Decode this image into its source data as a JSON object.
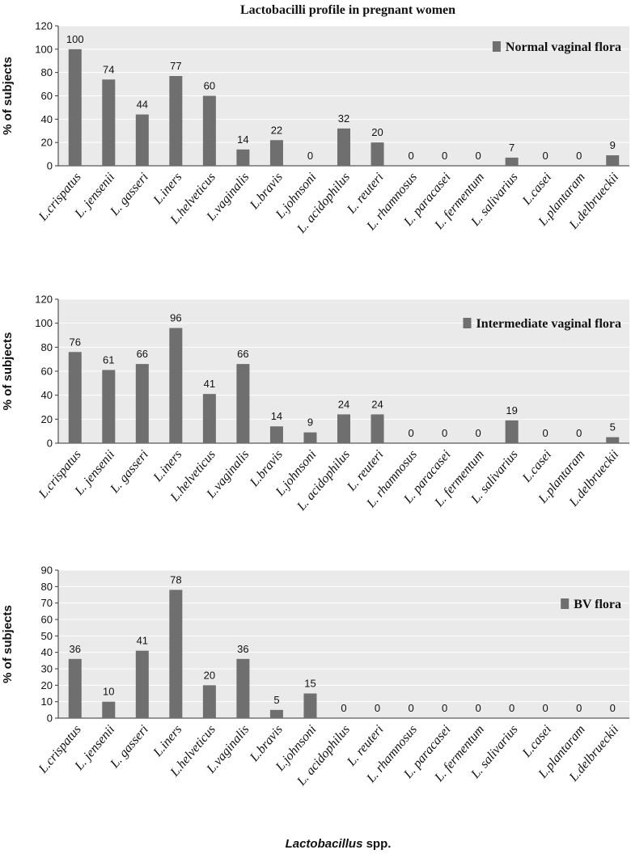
{
  "figure_title": "Lactobacilli profile in pregnant women",
  "x_axis_label": {
    "italic_part": "Lactobacillus",
    "regular_part": " spp."
  },
  "colors": {
    "bar": "#6f6f6f",
    "plot_background": "#eaeaea",
    "grid": "#ffffff",
    "axis": "#333333"
  },
  "chart_data": [
    {
      "type": "bar",
      "legend": "Normal vaginal flora",
      "ylabel": "% of subjects",
      "ylim": [
        0,
        120
      ],
      "yticks": [
        0,
        20,
        40,
        60,
        80,
        100,
        120
      ],
      "categories": [
        "L.crispatus",
        "L. jensenii",
        "L. gasseri",
        "L.iners",
        "L.helveticus",
        "L.vaginalis",
        "L.bravis",
        "L.johnsoni",
        "L. acidophilus",
        "L. reuteri",
        "L. rhamnosus",
        "L. paracasei",
        "L. fermentum",
        "L. salivarius",
        "L.casei",
        "L.plantaram",
        "L.delbrueckii"
      ],
      "values": [
        100,
        74,
        44,
        77,
        60,
        14,
        22,
        0,
        32,
        20,
        0,
        0,
        0,
        7,
        0,
        0,
        9
      ]
    },
    {
      "type": "bar",
      "legend": "Intermediate vaginal flora",
      "ylabel": "% of subjects",
      "ylim": [
        0,
        120
      ],
      "yticks": [
        0,
        20,
        40,
        60,
        80,
        100,
        120
      ],
      "categories": [
        "L.crispatus",
        "L. jensenii",
        "L. gasseri",
        "L.iners",
        "L.helveticus",
        "L.vaginalis",
        "L.bravis",
        "L.johnsoni",
        "L. acidophilus",
        "L. reuteri",
        "L. rhamnosus",
        "L. paracasei",
        "L. fermentum",
        "L. salivarius",
        "L.casei",
        "L.plantaram",
        "L.delbrueckii"
      ],
      "values": [
        76,
        61,
        66,
        96,
        41,
        66,
        14,
        9,
        24,
        24,
        0,
        0,
        0,
        19,
        0,
        0,
        5
      ]
    },
    {
      "type": "bar",
      "legend": "BV flora",
      "ylabel": "% of subjects",
      "ylim": [
        0,
        90
      ],
      "yticks": [
        0,
        10,
        20,
        30,
        40,
        50,
        60,
        70,
        80,
        90
      ],
      "categories": [
        "L.crispatus",
        "L. jensenii",
        "L. gasseri",
        "L.iners",
        "L.helveticus",
        "L.vaginalis",
        "L.bravis",
        "L.johnsoni",
        "L. acidophilus",
        "L. reuteri",
        "L. rhamnosus",
        "L. paracasei",
        "L. fermentum",
        "L. salivarius",
        "L.casei",
        "L.plantaram",
        "L.delbrueckii"
      ],
      "values": [
        36,
        10,
        41,
        78,
        20,
        36,
        5,
        15,
        0,
        0,
        0,
        0,
        0,
        0,
        0,
        0,
        0
      ]
    }
  ]
}
